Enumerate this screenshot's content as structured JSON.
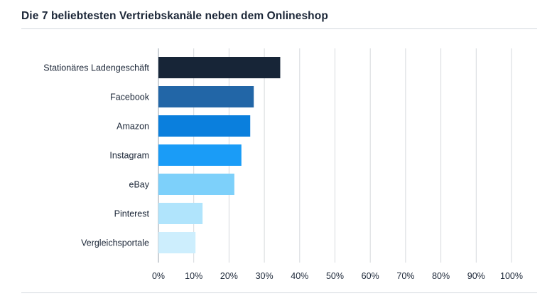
{
  "chart_data": {
    "type": "bar",
    "orientation": "horizontal",
    "title": "Die 7 beliebtesten Vertriebskanäle neben dem Onlineshop",
    "categories": [
      "Stationäres Ladengeschäft",
      "Facebook",
      "Amazon",
      "Instagram",
      "eBay",
      "Pinterest",
      "Vergleichsportale"
    ],
    "values": [
      34.5,
      27,
      26,
      23.5,
      21.5,
      12.5,
      10.5
    ],
    "colors": [
      "#172537",
      "#2266a7",
      "#0a7fdd",
      "#1a9cf7",
      "#7dd0fa",
      "#b0e4fc",
      "#cdeefd"
    ],
    "xlim": [
      0,
      100
    ],
    "xticks": [
      0,
      10,
      20,
      30,
      40,
      50,
      60,
      70,
      80,
      90,
      100
    ],
    "xtick_labels": [
      "0%",
      "10%",
      "20%",
      "30%",
      "40%",
      "50%",
      "60%",
      "70%",
      "80%",
      "90%",
      "100%"
    ],
    "grid": true
  }
}
